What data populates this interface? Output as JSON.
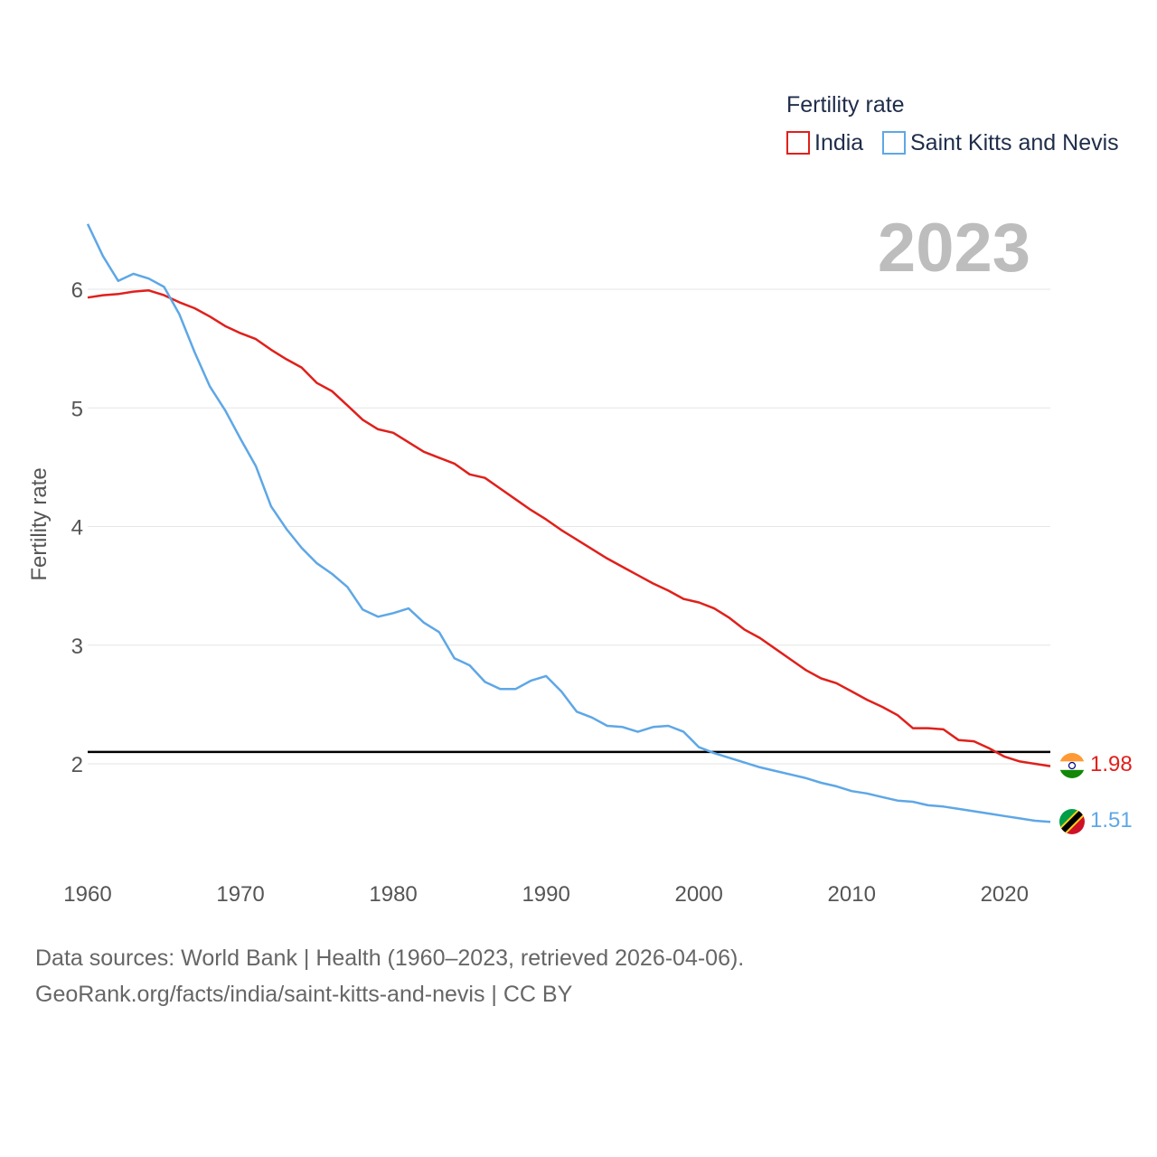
{
  "chart_data": {
    "type": "line",
    "title": "",
    "xlabel": "",
    "ylabel": "Fertility rate",
    "xlim": [
      1960,
      2023
    ],
    "ylim": [
      1.2,
      6.6
    ],
    "yticks": [
      2,
      3,
      4,
      5,
      6
    ],
    "xticks": [
      1960,
      1970,
      1980,
      1990,
      2000,
      2010,
      2020
    ],
    "year_label": "2023",
    "legend": {
      "title": "Fertility rate",
      "position": "top-right"
    },
    "reference_line": {
      "value": 2.1,
      "color": "#000000"
    },
    "x": [
      1960,
      1961,
      1962,
      1963,
      1964,
      1965,
      1966,
      1967,
      1968,
      1969,
      1970,
      1971,
      1972,
      1973,
      1974,
      1975,
      1976,
      1977,
      1978,
      1979,
      1980,
      1981,
      1982,
      1983,
      1984,
      1985,
      1986,
      1987,
      1988,
      1989,
      1990,
      1991,
      1992,
      1993,
      1994,
      1995,
      1996,
      1997,
      1998,
      1999,
      2000,
      2001,
      2002,
      2003,
      2004,
      2005,
      2006,
      2007,
      2008,
      2009,
      2010,
      2011,
      2012,
      2013,
      2014,
      2015,
      2016,
      2017,
      2018,
      2019,
      2020,
      2021,
      2022,
      2023
    ],
    "series": [
      {
        "name": "India",
        "color": "#e0201b",
        "end_label": "1.98",
        "values": [
          5.93,
          5.95,
          5.96,
          5.98,
          5.99,
          5.95,
          5.89,
          5.84,
          5.77,
          5.69,
          5.63,
          5.58,
          5.49,
          5.41,
          5.34,
          5.21,
          5.14,
          5.02,
          4.9,
          4.82,
          4.79,
          4.71,
          4.63,
          4.58,
          4.53,
          4.44,
          4.41,
          4.32,
          4.23,
          4.14,
          4.06,
          3.97,
          3.89,
          3.81,
          3.73,
          3.66,
          3.59,
          3.52,
          3.46,
          3.39,
          3.36,
          3.31,
          3.23,
          3.13,
          3.06,
          2.97,
          2.88,
          2.79,
          2.72,
          2.68,
          2.61,
          2.54,
          2.48,
          2.41,
          2.3,
          2.3,
          2.29,
          2.2,
          2.19,
          2.13,
          2.06,
          2.02,
          2.0,
          1.98
        ]
      },
      {
        "name": "Saint Kitts and Nevis",
        "color": "#5ea7e6",
        "end_label": "1.51",
        "values": [
          6.55,
          6.28,
          6.07,
          6.13,
          6.09,
          6.02,
          5.79,
          5.47,
          5.18,
          4.98,
          4.74,
          4.51,
          4.17,
          3.98,
          3.82,
          3.69,
          3.6,
          3.49,
          3.3,
          3.24,
          3.27,
          3.31,
          3.19,
          3.11,
          2.89,
          2.83,
          2.69,
          2.63,
          2.63,
          2.7,
          2.74,
          2.61,
          2.44,
          2.39,
          2.32,
          2.31,
          2.27,
          2.31,
          2.32,
          2.27,
          2.14,
          2.09,
          2.05,
          2.01,
          1.97,
          1.94,
          1.91,
          1.88,
          1.84,
          1.81,
          1.77,
          1.75,
          1.72,
          1.69,
          1.68,
          1.65,
          1.64,
          1.62,
          1.6,
          1.58,
          1.56,
          1.54,
          1.52,
          1.51
        ]
      }
    ]
  },
  "footer": {
    "line1": "Data sources: World Bank | Health (1960–2023, retrieved 2026-04-06).",
    "line2": "GeoRank.org/facts/india/saint-kitts-and-nevis | CC BY"
  }
}
